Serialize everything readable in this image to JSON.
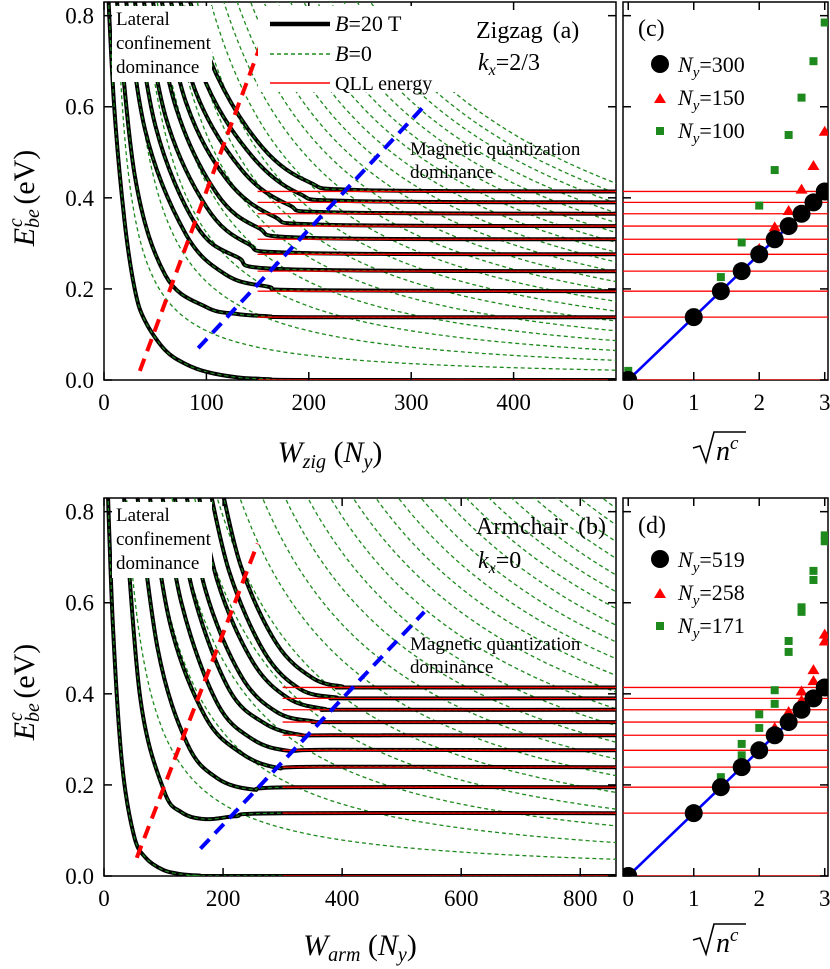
{
  "colors": {
    "black": "#000000",
    "red": "#ff0000",
    "green": "#1e8a1e",
    "blue": "#0000ff",
    "frame": "#000000"
  },
  "chart_data": [
    {
      "id": "a",
      "type": "line",
      "panel_label": "(a)",
      "title": "Zigzag",
      "condition": "kx=2/3",
      "xlabel": "Wzig (Ny)",
      "ylabel": "Ebe c (eV)",
      "xlim": [
        0,
        500
      ],
      "ylim": [
        0,
        0.83
      ],
      "xticks": [
        0,
        100,
        200,
        300,
        400
      ],
      "yticks": [
        "0.0",
        "0.2",
        "0.4",
        "0.6",
        "0.8"
      ],
      "legend": [
        "B=20 T",
        "B=0",
        "QLL energy"
      ],
      "annotations": [
        "Lateral confinement dominance",
        "Magnetic quantization dominance"
      ],
      "qll_energies": [
        0.0,
        0.138,
        0.195,
        0.239,
        0.276,
        0.309,
        0.338,
        0.365,
        0.39,
        0.414
      ],
      "series": [
        {
          "style": "B=20 T",
          "plateau": 0.0,
          "x": [
            3,
            10,
            20,
            30,
            40,
            60,
            80,
            100,
            130,
            160,
            200,
            500
          ],
          "y": [
            0.9,
            0.6,
            0.35,
            0.2,
            0.13,
            0.065,
            0.035,
            0.018,
            0.006,
            0.002,
            0.0,
            0.0
          ]
        },
        {
          "style": "B=20 T",
          "plateau": 0.138,
          "x": [
            10,
            30,
            60,
            100,
            130,
            160,
            200,
            500
          ],
          "y": [
            0.9,
            0.45,
            0.23,
            0.16,
            0.145,
            0.14,
            0.138,
            0.138
          ]
        },
        {
          "style": "B=20 T",
          "plateau": 0.195,
          "x": [
            18,
            40,
            80,
            120,
            160,
            200,
            500
          ],
          "y": [
            0.9,
            0.55,
            0.32,
            0.23,
            0.205,
            0.197,
            0.195
          ]
        },
        {
          "style": "B=20 T",
          "plateau": 0.239,
          "x": [
            26,
            50,
            90,
            130,
            180,
            500
          ],
          "y": [
            0.9,
            0.56,
            0.34,
            0.27,
            0.243,
            0.239
          ]
        },
        {
          "style": "B=20 T",
          "plateau": 0.276,
          "x": [
            34,
            60,
            100,
            140,
            190,
            500
          ],
          "y": [
            0.9,
            0.58,
            0.38,
            0.3,
            0.279,
            0.276
          ]
        },
        {
          "style": "B=20 T",
          "plateau": 0.309,
          "x": [
            42,
            70,
            110,
            150,
            200,
            500
          ],
          "y": [
            0.9,
            0.6,
            0.41,
            0.335,
            0.312,
            0.309
          ]
        },
        {
          "style": "B=20 T",
          "plateau": 0.338,
          "x": [
            50,
            80,
            120,
            165,
            215,
            500
          ],
          "y": [
            0.9,
            0.61,
            0.44,
            0.36,
            0.341,
            0.338
          ]
        },
        {
          "style": "B=20 T",
          "plateau": 0.365,
          "x": [
            58,
            90,
            135,
            180,
            225,
            500
          ],
          "y": [
            0.9,
            0.63,
            0.46,
            0.385,
            0.368,
            0.365
          ]
        },
        {
          "style": "B=20 T",
          "plateau": 0.39,
          "x": [
            66,
            100,
            145,
            190,
            240,
            500
          ],
          "y": [
            0.9,
            0.65,
            0.49,
            0.41,
            0.393,
            0.39
          ]
        },
        {
          "style": "B=20 T",
          "plateau": 0.414,
          "x": [
            74,
            110,
            155,
            200,
            250,
            500
          ],
          "y": [
            0.9,
            0.67,
            0.51,
            0.435,
            0.417,
            0.414
          ]
        }
      ],
      "b0_count": 20,
      "b0_decay": 1.0,
      "dashed_red": [
        [
          35,
          0.02
        ],
        [
          152,
          0.73
        ]
      ],
      "dashed_blue": [
        [
          92,
          0.07
        ],
        [
          312,
          0.6
        ]
      ]
    },
    {
      "id": "b",
      "type": "line",
      "panel_label": "(b)",
      "title": "Armchair",
      "condition": "kx=0",
      "xlabel": "Warm (Ny)",
      "ylabel": "Ebe c (eV)",
      "xlim": [
        0,
        860
      ],
      "ylim": [
        0,
        0.83
      ],
      "xticks": [
        0,
        200,
        400,
        600,
        800
      ],
      "yticks": [
        "0.0",
        "0.2",
        "0.4",
        "0.6",
        "0.8"
      ],
      "annotations": [
        "Lateral confinement dominance",
        "Magnetic quantization dominance"
      ],
      "qll_energies": [
        0.0,
        0.138,
        0.195,
        0.239,
        0.276,
        0.309,
        0.338,
        0.365,
        0.39,
        0.414
      ],
      "series": [
        {
          "style": "B=20 T",
          "plateau": 0.0,
          "x": [
            5,
            15,
            30,
            50,
            70,
            100,
            130,
            160,
            200,
            860
          ],
          "y": [
            0.9,
            0.55,
            0.25,
            0.09,
            0.04,
            0.013,
            0.004,
            0.001,
            0.0,
            0.0
          ]
        },
        {
          "style": "B=20 T",
          "plateau": 0.138,
          "x": [
            30,
            60,
            100,
            130,
            170,
            220,
            300,
            860
          ],
          "y": [
            0.9,
            0.4,
            0.19,
            0.14,
            0.125,
            0.131,
            0.138,
            0.138
          ]
        },
        {
          "style": "B=20 T",
          "plateau": 0.195,
          "x": [
            50,
            90,
            140,
            190,
            250,
            320,
            860
          ],
          "y": [
            0.9,
            0.5,
            0.29,
            0.215,
            0.19,
            0.195,
            0.195
          ]
        },
        {
          "style": "B=20 T",
          "plateau": 0.239,
          "x": [
            70,
            110,
            170,
            230,
            290,
            360,
            860
          ],
          "y": [
            0.9,
            0.56,
            0.35,
            0.27,
            0.238,
            0.24,
            0.239
          ]
        },
        {
          "style": "B=20 T",
          "plateau": 0.276,
          "x": [
            90,
            130,
            190,
            250,
            310,
            380,
            860
          ],
          "y": [
            0.9,
            0.6,
            0.38,
            0.3,
            0.275,
            0.277,
            0.276
          ]
        },
        {
          "style": "B=20 T",
          "plateau": 0.309,
          "x": [
            110,
            150,
            210,
            270,
            330,
            390,
            860
          ],
          "y": [
            0.9,
            0.62,
            0.41,
            0.335,
            0.31,
            0.309,
            0.309
          ]
        },
        {
          "style": "B=20 T",
          "plateau": 0.338,
          "x": [
            130,
            170,
            230,
            290,
            350,
            400,
            860
          ],
          "y": [
            0.9,
            0.63,
            0.44,
            0.36,
            0.34,
            0.338,
            0.338
          ]
        },
        {
          "style": "B=20 T",
          "plateau": 0.365,
          "x": [
            150,
            190,
            250,
            310,
            370,
            410,
            860
          ],
          "y": [
            0.9,
            0.65,
            0.47,
            0.39,
            0.367,
            0.365,
            0.365
          ]
        },
        {
          "style": "B=20 T",
          "plateau": 0.39,
          "x": [
            170,
            210,
            270,
            330,
            390,
            420,
            860
          ],
          "y": [
            0.9,
            0.67,
            0.49,
            0.41,
            0.392,
            0.39,
            0.39
          ]
        },
        {
          "style": "B=20 T",
          "plateau": 0.414,
          "x": [
            190,
            230,
            290,
            350,
            400,
            430,
            860
          ],
          "y": [
            0.9,
            0.68,
            0.51,
            0.435,
            0.416,
            0.414,
            0.414
          ]
        }
      ],
      "b0_count": 24,
      "b0_decay": 1.7,
      "dashed_red": [
        [
          55,
          0.04
        ],
        [
          258,
          0.73
        ]
      ],
      "dashed_blue": [
        [
          162,
          0.06
        ],
        [
          538,
          0.58
        ]
      ]
    },
    {
      "id": "c",
      "type": "scatter",
      "panel_label": "(c)",
      "xlabel": "√nc",
      "xlim": [
        -0.08,
        3.05
      ],
      "ylim": [
        0,
        0.83
      ],
      "xticks": [
        "0",
        "1",
        "2",
        "3"
      ],
      "legend": [
        "Ny=300",
        "Ny=150",
        "Ny=100"
      ],
      "qll_energies": [
        0.0,
        0.138,
        0.195,
        0.239,
        0.276,
        0.309,
        0.338,
        0.365,
        0.39,
        0.414
      ],
      "fit_line": [
        [
          0,
          0
        ],
        [
          3.0,
          0.414
        ]
      ],
      "series": [
        {
          "name": "Ny=300",
          "marker": "circle",
          "x": [
            0,
            1,
            1.414,
            1.732,
            2,
            2.236,
            2.449,
            2.646,
            2.828,
            3
          ],
          "y": [
            0,
            0.138,
            0.195,
            0.239,
            0.276,
            0.309,
            0.338,
            0.365,
            0.39,
            0.414
          ]
        },
        {
          "name": "Ny=150",
          "marker": "triangle",
          "x": [
            0,
            1,
            1.414,
            1.732,
            2,
            2.236,
            2.449,
            2.646,
            2.828,
            3
          ],
          "y": [
            0.003,
            0.14,
            0.198,
            0.243,
            0.288,
            0.335,
            0.371,
            0.418,
            0.47,
            0.545
          ]
        },
        {
          "name": "Ny=100",
          "marker": "square",
          "x": [
            0,
            1,
            1.414,
            1.732,
            2,
            2.236,
            2.449,
            2.646,
            2.828,
            3
          ],
          "y": [
            0.02,
            0.148,
            0.226,
            0.302,
            0.383,
            0.461,
            0.538,
            0.62,
            0.7,
            0.785
          ]
        }
      ]
    },
    {
      "id": "d",
      "type": "scatter",
      "panel_label": "(d)",
      "xlabel": "√nc",
      "xlim": [
        -0.08,
        3.05
      ],
      "ylim": [
        0,
        0.83
      ],
      "xticks": [
        "0",
        "1",
        "2",
        "3"
      ],
      "legend": [
        "Ny=519",
        "Ny=258",
        "Ny=171"
      ],
      "qll_energies": [
        0.0,
        0.138,
        0.195,
        0.239,
        0.276,
        0.309,
        0.338,
        0.365,
        0.39,
        0.414
      ],
      "fit_line": [
        [
          0,
          0
        ],
        [
          3.0,
          0.414
        ]
      ],
      "series": [
        {
          "name": "Ny=519",
          "marker": "circle",
          "x": [
            0,
            1,
            1.414,
            1.732,
            2,
            2.236,
            2.449,
            2.646,
            2.828,
            3
          ],
          "y": [
            0,
            0.138,
            0.195,
            0.239,
            0.276,
            0.309,
            0.338,
            0.365,
            0.39,
            0.414
          ]
        },
        {
          "name": "Ny=258",
          "marker": "triangle",
          "x": [
            0,
            0,
            1,
            1,
            1.414,
            1.414,
            1.732,
            1.732,
            2,
            2,
            2.236,
            2.236,
            2.449,
            2.449,
            2.646,
            2.646,
            2.828,
            2.828,
            3,
            3
          ],
          "y": [
            0,
            0.003,
            0.138,
            0.14,
            0.195,
            0.198,
            0.239,
            0.243,
            0.275,
            0.282,
            0.312,
            0.325,
            0.345,
            0.36,
            0.385,
            0.405,
            0.428,
            0.452,
            0.515,
            0.53
          ]
        },
        {
          "name": "Ny=171",
          "marker": "square",
          "x": [
            0,
            0,
            1,
            1,
            1.414,
            1.414,
            1.732,
            1.732,
            2,
            2,
            2.236,
            2.236,
            2.449,
            2.449,
            2.646,
            2.646,
            2.828,
            2.828,
            3,
            3
          ],
          "y": [
            0.003,
            0.006,
            0.142,
            0.146,
            0.205,
            0.217,
            0.265,
            0.29,
            0.325,
            0.355,
            0.378,
            0.408,
            0.492,
            0.516,
            0.58,
            0.59,
            0.65,
            0.67,
            0.735,
            0.748
          ]
        }
      ]
    }
  ]
}
